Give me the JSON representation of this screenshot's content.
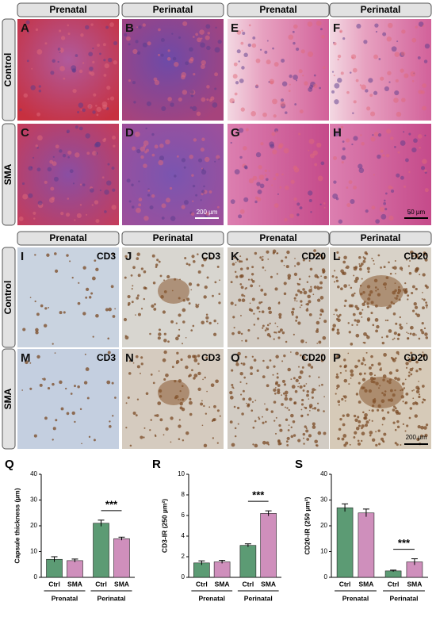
{
  "he_panels": {
    "headers": [
      "Prenatal",
      "Perinatal",
      "Prenatal",
      "Perinatal"
    ],
    "row_labels": [
      "Control",
      "SMA"
    ],
    "letters": [
      "A",
      "B",
      "E",
      "F",
      "C",
      "D",
      "G",
      "H"
    ],
    "scale_bars": [
      "200 µm",
      "50 µm"
    ]
  },
  "ihc_panels": {
    "headers": [
      "Prenatal",
      "Perinatal",
      "Prenatal",
      "Perinatal"
    ],
    "row_labels": [
      "Control",
      "SMA"
    ],
    "letters": [
      "I",
      "J",
      "K",
      "L",
      "M",
      "N",
      "O",
      "P"
    ],
    "markers": [
      "CD3",
      "CD3",
      "CD20",
      "CD20",
      "CD3",
      "CD3",
      "CD20",
      "CD20"
    ],
    "scale_bar": "200 µm"
  },
  "chart_data": [
    {
      "type": "bar",
      "panel_label": "Q",
      "y_label": "Capsule thickness (µm)",
      "categories": [
        "Ctrl",
        "SMA",
        "Ctrl",
        "SMA"
      ],
      "groups": [
        "Prenatal",
        "Perinatal"
      ],
      "values": [
        7,
        6.5,
        21,
        15
      ],
      "errors": [
        1,
        0.6,
        1.2,
        0.6
      ],
      "colors": [
        "#3f8a5c",
        "#c77bb0",
        "#3f8a5c",
        "#c77bb0"
      ],
      "ylim": [
        0,
        40
      ],
      "yticks": [
        0,
        10,
        20,
        30,
        40
      ],
      "significance": "***"
    },
    {
      "type": "bar",
      "panel_label": "R",
      "y_label": "CD3-IR (250 µm²)",
      "categories": [
        "Ctrl",
        "SMA",
        "Ctrl",
        "SMA"
      ],
      "groups": [
        "Prenatal",
        "Perinatal"
      ],
      "values": [
        1.4,
        1.5,
        3.1,
        6.2
      ],
      "errors": [
        0.2,
        0.15,
        0.15,
        0.25
      ],
      "colors": [
        "#3f8a5c",
        "#c77bb0",
        "#3f8a5c",
        "#c77bb0"
      ],
      "ylim": [
        0,
        10
      ],
      "yticks": [
        0,
        2,
        4,
        6,
        8,
        10
      ],
      "significance": "***"
    },
    {
      "type": "bar",
      "panel_label": "S",
      "y_label": "CD20-IR (250 µm²)",
      "categories": [
        "Ctrl",
        "SMA",
        "Ctrl",
        "SMA"
      ],
      "groups": [
        "Prenatal",
        "Perinatal"
      ],
      "values": [
        27,
        25,
        2.5,
        6
      ],
      "errors": [
        1.5,
        1.5,
        0.3,
        1.2
      ],
      "colors": [
        "#3f8a5c",
        "#c77bb0",
        "#3f8a5c",
        "#c77bb0"
      ],
      "ylim": [
        0,
        40
      ],
      "yticks": [
        0,
        10,
        20,
        30,
        40
      ],
      "significance": "***"
    }
  ]
}
